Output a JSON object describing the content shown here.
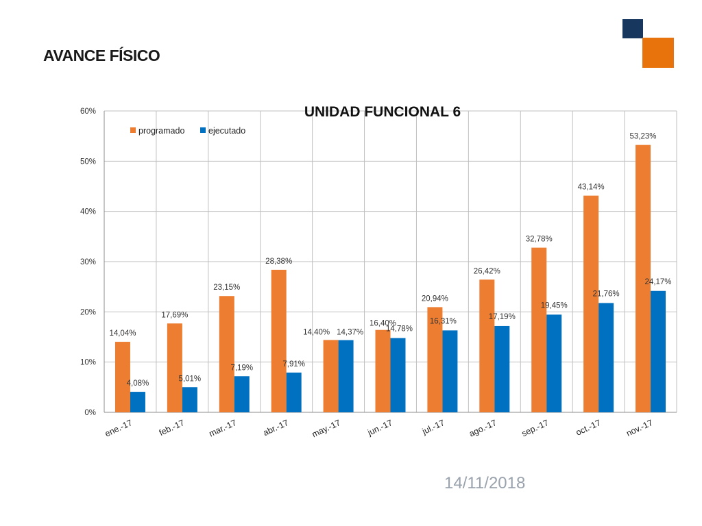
{
  "slide": {
    "title": "AVANCE FÍSICO",
    "date": "14/11/2018",
    "logo_colors": {
      "navy": "#17375e",
      "orange": "#e8730c"
    }
  },
  "chart_data": {
    "type": "bar",
    "title": "UNIDAD FUNCIONAL 6",
    "xlabel": "",
    "ylabel": "",
    "categories": [
      "ene.-17",
      "feb.-17",
      "mar.-17",
      "abr.-17",
      "may.-17",
      "jun.-17",
      "jul.-17",
      "ago.-17",
      "sep.-17",
      "oct.-17",
      "nov.-17"
    ],
    "series": [
      {
        "name": "programado",
        "color": "#ed7d31",
        "values": [
          14.04,
          17.69,
          23.15,
          28.38,
          14.4,
          16.4,
          20.94,
          26.42,
          32.78,
          43.14,
          53.23
        ],
        "labels": [
          "14,04%",
          "17,69%",
          "23,15%",
          "28,38%",
          "14,40%",
          "16,40%",
          "20,94%",
          "26,42%",
          "32,78%",
          "43,14%",
          "53,23%"
        ]
      },
      {
        "name": "ejecutado",
        "color": "#0070c0",
        "values": [
          4.08,
          5.01,
          7.19,
          7.91,
          14.37,
          14.78,
          16.31,
          17.19,
          19.45,
          21.76,
          24.17
        ],
        "labels": [
          "4,08%",
          "5,01%",
          "7,19%",
          "7,91%",
          "14,37%",
          "14,78%",
          "16,31%",
          "17,19%",
          "19,45%",
          "21,76%",
          "24,17%"
        ]
      }
    ],
    "ylim": [
      0,
      60
    ],
    "yticks": [
      0,
      10,
      20,
      30,
      40,
      50,
      60
    ],
    "ytick_labels": [
      "0%",
      "10%",
      "20%",
      "30%",
      "40%",
      "50%",
      "60%"
    ],
    "grid": true,
    "legend_position": "top-left"
  }
}
